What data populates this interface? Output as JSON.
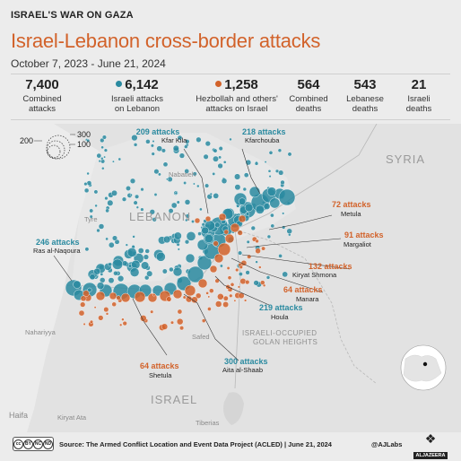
{
  "header": {
    "kicker": "ISRAEL'S WAR ON GAZA",
    "title": "Israel-Lebanon cross-border attacks",
    "date_range": "October 7, 2023 - June 21, 2024"
  },
  "stats": [
    {
      "value": "7,400",
      "label_1": "Combined",
      "label_2": "attacks"
    },
    {
      "value": "6,142",
      "label_1": "Israeli attacks",
      "label_2": "on Lebanon",
      "color": "#2a8aa0"
    },
    {
      "value": "1,258",
      "label_1": "Hezbollah and others'",
      "label_2": "attacks on Israel",
      "color": "#d2622a"
    },
    {
      "value": "564",
      "label_1": "Combined",
      "label_2": "deaths"
    },
    {
      "value": "543",
      "label_1": "Lebanese",
      "label_2": "deaths"
    },
    {
      "value": "21",
      "label_1": "Israeli",
      "label_2": "deaths"
    }
  ],
  "size_legend": [
    "300",
    "200",
    "100"
  ],
  "colors": {
    "israeli_attacks": "#2a8aa0",
    "hezbollah_attacks": "#d2622a",
    "title": "#d2622a",
    "land": "#e3e3e3",
    "sea": "#ececec"
  },
  "map_labels": {
    "syria": "SYRIA",
    "lebanon": "LEBANON",
    "israel": "ISRAEL",
    "golan_1": "ISRAELI-OCCUPIED",
    "golan_2": "GOLAN HEIGHTS",
    "nabatieh": "Nabatieh",
    "tyre": "Tyre",
    "nahariyya": "Nahariyya",
    "safed": "Safed",
    "haifa": "Haifa",
    "kiryat_ata": "Kiryat Ata",
    "tiberias": "Tiberias"
  },
  "annotations": [
    {
      "num": "209 attacks",
      "place": "Kfar Kila",
      "side": "israeli"
    },
    {
      "num": "218 attacks",
      "place": "Kfarchouba",
      "side": "israeli"
    },
    {
      "num": "72 attacks",
      "place": "Metula",
      "side": "hezbollah"
    },
    {
      "num": "246 attacks",
      "place": "Ras al-Naqoura",
      "side": "israeli"
    },
    {
      "num": "91 attacks",
      "place": "Margaliot",
      "side": "hezbollah"
    },
    {
      "num": "132 attacks",
      "place": "Kiryat Shmona",
      "side": "hezbollah"
    },
    {
      "num": "64 attacks",
      "place": "Manara",
      "side": "hezbollah"
    },
    {
      "num": "219 attacks",
      "place": "Houla",
      "side": "israeli"
    },
    {
      "num": "64 attacks",
      "place": "Shetula",
      "side": "hezbollah"
    },
    {
      "num": "300 attacks",
      "place": "Aita al-Shaab",
      "side": "israeli"
    }
  ],
  "footer": {
    "license": [
      "cc",
      "BY",
      "NC",
      "ND"
    ],
    "source": "Source: The Armed Conflict Location and Event Data Project (ACLED) | June 21, 2024",
    "credit": "@AJLabs",
    "logo_text": "ALJAZEERA"
  }
}
